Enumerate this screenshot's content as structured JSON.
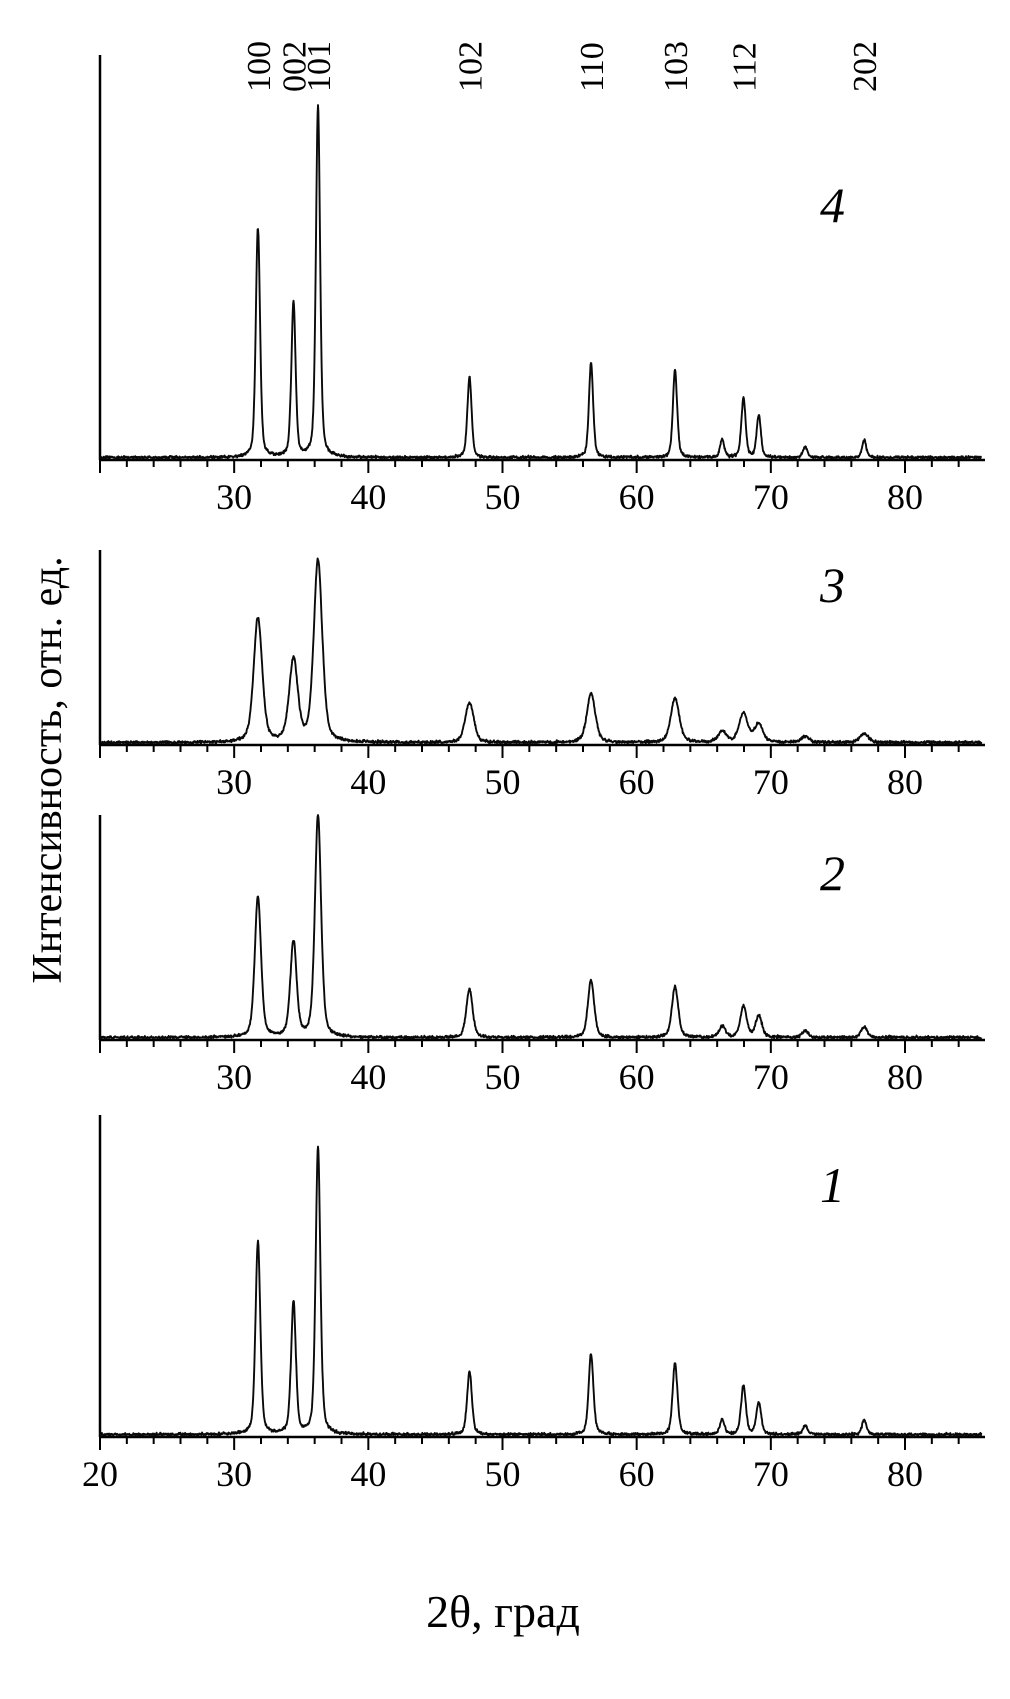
{
  "chart_data": {
    "type": "line",
    "title": "",
    "xlabel": "2θ, град",
    "ylabel": "Интенсивность, отн. ед.",
    "xlim": [
      20,
      80
    ],
    "x_major_ticks": [
      20,
      30,
      40,
      50,
      60,
      70,
      80
    ],
    "x_minor_step": 2,
    "grid": false,
    "colors": {
      "trace": "#0a0a0a",
      "axis": "#000000",
      "background": "#ffffff"
    },
    "miller_indices": [
      {
        "label": "100",
        "two_theta": 31.77
      },
      {
        "label": "002",
        "two_theta": 34.42
      },
      {
        "label": "101",
        "two_theta": 36.25
      },
      {
        "label": "102",
        "two_theta": 47.54
      },
      {
        "label": "110",
        "two_theta": 56.6
      },
      {
        "label": "103",
        "two_theta": 62.86
      },
      {
        "label": "112",
        "two_theta": 67.96
      },
      {
        "label": "202",
        "two_theta": 76.96
      }
    ],
    "panels": [
      {
        "label": "4",
        "fwhm_deg": 0.37,
        "tick_labels": [
          30,
          40,
          50,
          60,
          70,
          80
        ],
        "peaks": [
          {
            "two_theta": 31.77,
            "intensity": 0.65
          },
          {
            "two_theta": 34.42,
            "intensity": 0.44
          },
          {
            "two_theta": 36.25,
            "intensity": 1.0
          },
          {
            "two_theta": 47.54,
            "intensity": 0.23
          },
          {
            "two_theta": 56.6,
            "intensity": 0.27
          },
          {
            "two_theta": 62.86,
            "intensity": 0.25
          },
          {
            "two_theta": 66.38,
            "intensity": 0.05
          },
          {
            "two_theta": 67.96,
            "intensity": 0.17
          },
          {
            "two_theta": 69.1,
            "intensity": 0.12
          },
          {
            "two_theta": 72.56,
            "intensity": 0.03
          },
          {
            "two_theta": 76.96,
            "intensity": 0.05
          }
        ]
      },
      {
        "label": "3",
        "fwhm_deg": 0.75,
        "tick_labels": [
          30,
          40,
          50,
          60,
          70,
          80
        ],
        "peaks": [
          {
            "two_theta": 31.77,
            "intensity": 0.68
          },
          {
            "two_theta": 34.42,
            "intensity": 0.45
          },
          {
            "two_theta": 36.25,
            "intensity": 1.0
          },
          {
            "two_theta": 47.54,
            "intensity": 0.22
          },
          {
            "two_theta": 56.6,
            "intensity": 0.27
          },
          {
            "two_theta": 62.86,
            "intensity": 0.24
          },
          {
            "two_theta": 66.38,
            "intensity": 0.06
          },
          {
            "two_theta": 67.96,
            "intensity": 0.16
          },
          {
            "two_theta": 69.1,
            "intensity": 0.1
          },
          {
            "two_theta": 72.56,
            "intensity": 0.03
          },
          {
            "two_theta": 76.96,
            "intensity": 0.05
          }
        ]
      },
      {
        "label": "2",
        "fwhm_deg": 0.55,
        "tick_labels": [
          30,
          40,
          50,
          60,
          70,
          80
        ],
        "peaks": [
          {
            "two_theta": 31.77,
            "intensity": 0.63
          },
          {
            "two_theta": 34.42,
            "intensity": 0.43
          },
          {
            "two_theta": 36.25,
            "intensity": 1.0
          },
          {
            "two_theta": 47.54,
            "intensity": 0.22
          },
          {
            "two_theta": 56.6,
            "intensity": 0.26
          },
          {
            "two_theta": 62.86,
            "intensity": 0.23
          },
          {
            "two_theta": 66.38,
            "intensity": 0.05
          },
          {
            "two_theta": 67.96,
            "intensity": 0.14
          },
          {
            "two_theta": 69.1,
            "intensity": 0.1
          },
          {
            "two_theta": 72.56,
            "intensity": 0.03
          },
          {
            "two_theta": 76.96,
            "intensity": 0.05
          }
        ]
      },
      {
        "label": "1",
        "fwhm_deg": 0.42,
        "tick_labels": [
          20,
          30,
          40,
          50,
          60,
          70,
          80
        ],
        "peaks": [
          {
            "two_theta": 31.77,
            "intensity": 0.67
          },
          {
            "two_theta": 34.42,
            "intensity": 0.46
          },
          {
            "two_theta": 36.25,
            "intensity": 1.0
          },
          {
            "two_theta": 47.54,
            "intensity": 0.22
          },
          {
            "two_theta": 56.6,
            "intensity": 0.28
          },
          {
            "two_theta": 62.86,
            "intensity": 0.25
          },
          {
            "two_theta": 66.38,
            "intensity": 0.05
          },
          {
            "two_theta": 67.96,
            "intensity": 0.17
          },
          {
            "two_theta": 69.1,
            "intensity": 0.11
          },
          {
            "two_theta": 72.56,
            "intensity": 0.03
          },
          {
            "two_theta": 76.96,
            "intensity": 0.05
          }
        ]
      }
    ]
  }
}
